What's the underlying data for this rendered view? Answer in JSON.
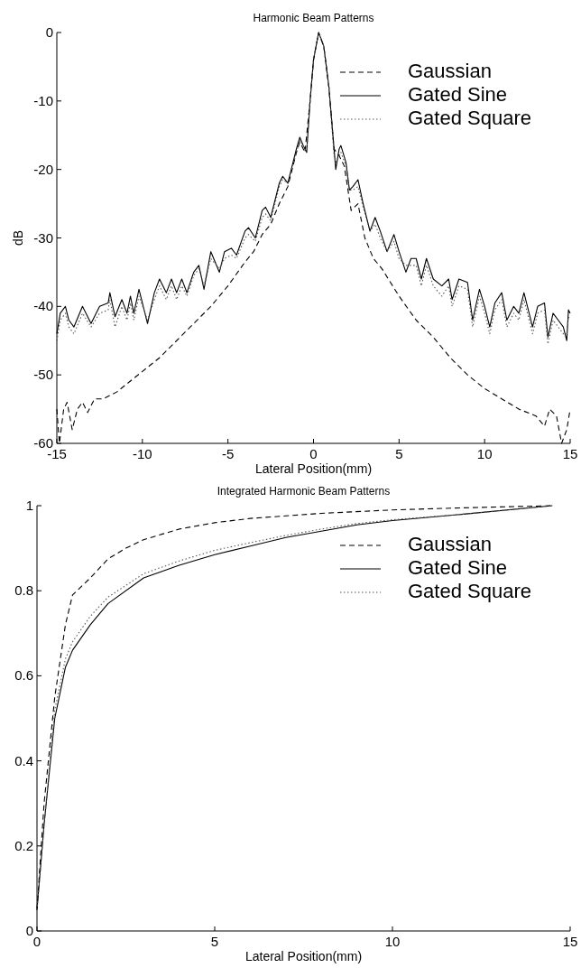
{
  "chart_data": [
    {
      "type": "line",
      "title": "Harmonic Beam Patterns",
      "xlabel": "Lateral Position(mm)",
      "ylabel": "dB",
      "xlim": [
        -15,
        15
      ],
      "ylim": [
        -60,
        0
      ],
      "xticks": [
        -15,
        -10,
        -5,
        0,
        5,
        10,
        15
      ],
      "yticks": [
        -60,
        -50,
        -40,
        -30,
        -20,
        -10,
        0
      ],
      "legend": "top right",
      "series": [
        {
          "name": "Gaussian",
          "color": "#000000",
          "line_style": "dashed",
          "x": [
            -15,
            -14.85,
            -14.6,
            -14.4,
            -14.1,
            -13.8,
            -13.5,
            -13.2,
            -12.8,
            -12.3,
            -11.5,
            -11,
            -10,
            -9,
            -8,
            -7,
            -6,
            -5,
            -4,
            -3.5,
            -3,
            -2.5,
            -2,
            -1.5,
            -1,
            -0.8,
            -0.5,
            -0.2,
            0,
            0.3,
            0.6,
            0.9,
            1.2,
            1.5,
            1.8,
            2.2,
            2.6,
            3,
            3.5,
            4,
            5,
            6,
            7,
            8,
            9,
            10,
            11,
            12,
            13,
            13.5,
            13.8,
            14.2,
            14.5,
            14.8,
            15
          ],
          "values": [
            -55,
            -60,
            -55,
            -54,
            -58,
            -55,
            -54,
            -55.5,
            -53.5,
            -53.5,
            -52.5,
            -51.5,
            -49.5,
            -47.5,
            -45,
            -42.5,
            -40,
            -37,
            -33.5,
            -32,
            -29.5,
            -28,
            -25,
            -22.5,
            -17.5,
            -16,
            -17.5,
            -10,
            -4,
            0,
            -2,
            -8,
            -17,
            -18,
            -19.5,
            -26,
            -25,
            -30,
            -33,
            -34.5,
            -38.5,
            -42,
            -44.5,
            -47.5,
            -50,
            -52,
            -53.5,
            -55,
            -56,
            -57.5,
            -55,
            -56,
            -60,
            -58,
            -55
          ]
        },
        {
          "name": "Gated Sine",
          "color": "#000000",
          "line_style": "solid",
          "x": [
            -15,
            -14.8,
            -14.5,
            -14.3,
            -14,
            -13.5,
            -13,
            -12.5,
            -12,
            -11.9,
            -11.6,
            -11.2,
            -10.9,
            -10.7,
            -10.5,
            -10.2,
            -9.7,
            -9.3,
            -9,
            -8.6,
            -8.3,
            -8,
            -7.7,
            -7.4,
            -7,
            -6.7,
            -6.4,
            -6,
            -5.5,
            -5.2,
            -4.8,
            -4.5,
            -4,
            -3.8,
            -3.4,
            -3,
            -2.8,
            -2.5,
            -2,
            -1.8,
            -1.5,
            -1,
            -0.8,
            -0.6,
            -0.4,
            -0.2,
            0,
            0.3,
            0.6,
            0.9,
            1.2,
            1.3,
            1.5,
            1.6,
            1.9,
            2.1,
            2.3,
            2.6,
            2.9,
            3.3,
            3.6,
            3.9,
            4.3,
            4.7,
            5,
            5.4,
            5.7,
            6,
            6.3,
            6.6,
            7,
            7.5,
            7.9,
            8.1,
            8.5,
            9,
            9.3,
            9.7,
            10,
            10.3,
            10.6,
            11,
            11.3,
            11.7,
            12,
            12.3,
            12.6,
            12.8,
            13.1,
            13.5,
            13.7,
            14,
            14.3,
            14.6,
            14.8,
            14.9,
            15
          ],
          "values": [
            -44,
            -41,
            -40,
            -42,
            -43,
            -40,
            -42.5,
            -40,
            -39.5,
            -38,
            -41.5,
            -39,
            -41,
            -38.5,
            -41,
            -37.5,
            -42.5,
            -38,
            -36,
            -38,
            -36,
            -38,
            -36,
            -38,
            -35,
            -34,
            -37.5,
            -32,
            -35,
            -32,
            -31.5,
            -32.5,
            -29,
            -28.5,
            -30,
            -26,
            -25.5,
            -27,
            -22,
            -21,
            -22,
            -17,
            -15.3,
            -16.5,
            -17.5,
            -10,
            -4,
            0,
            -2,
            -8,
            -17,
            -20,
            -17,
            -16.5,
            -19,
            -23,
            -22.5,
            -21.5,
            -25,
            -29,
            -27,
            -29,
            -32,
            -29.5,
            -32,
            -35,
            -33,
            -33,
            -36,
            -33,
            -36,
            -37,
            -36,
            -39,
            -36,
            -36.5,
            -42,
            -37.5,
            -40,
            -43,
            -39.5,
            -38,
            -42,
            -40,
            -41,
            -38,
            -41,
            -43,
            -40,
            -39.5,
            -44.5,
            -41,
            -42,
            -43,
            -45,
            -40.5,
            -41
          ]
        },
        {
          "name": "Gated Square",
          "color": "#555555",
          "line_style": "dotted",
          "x": [
            -15,
            -14.8,
            -14.5,
            -14.3,
            -14,
            -13.5,
            -13,
            -12.5,
            -12,
            -11.9,
            -11.6,
            -11.2,
            -10.9,
            -10.7,
            -10.5,
            -10.2,
            -9.7,
            -9.3,
            -9,
            -8.6,
            -8.3,
            -8,
            -7.7,
            -7.4,
            -7,
            -6.7,
            -6.4,
            -6,
            -5.5,
            -5.2,
            -4.8,
            -4.5,
            -4,
            -3.8,
            -3.4,
            -3,
            -2.8,
            -2.5,
            -2,
            -1.8,
            -1.5,
            -1,
            -0.8,
            -0.6,
            -0.4,
            -0.2,
            0,
            0.3,
            0.6,
            0.9,
            1.2,
            1.3,
            1.5,
            1.6,
            1.9,
            2.1,
            2.3,
            2.6,
            2.9,
            3.3,
            3.6,
            3.9,
            4.3,
            4.7,
            5,
            5.4,
            5.7,
            6,
            6.3,
            6.6,
            7,
            7.5,
            7.9,
            8.1,
            8.5,
            9,
            9.3,
            9.7,
            10,
            10.3,
            10.6,
            11,
            11.3,
            11.7,
            12,
            12.3,
            12.6,
            12.8,
            13.1,
            13.5,
            13.7,
            14,
            14.3,
            14.6,
            14.8,
            14.9,
            15
          ],
          "values": [
            -45,
            -42,
            -41,
            -43,
            -44,
            -41,
            -43,
            -41,
            -40.5,
            -39,
            -43,
            -40,
            -42,
            -39.5,
            -42,
            -38.5,
            -42,
            -39,
            -37,
            -39,
            -37,
            -39,
            -37,
            -38.5,
            -35.5,
            -34.5,
            -37,
            -33,
            -34.5,
            -33,
            -32.5,
            -33,
            -30,
            -29.5,
            -30.5,
            -27,
            -26.5,
            -27.5,
            -22.5,
            -21.5,
            -22,
            -17.5,
            -15.8,
            -16.5,
            -17.5,
            -10,
            -4,
            0,
            -2,
            -8,
            -18,
            -19,
            -18,
            -17.5,
            -19.5,
            -23,
            -23,
            -22.5,
            -25.5,
            -29,
            -28,
            -30,
            -32,
            -30.5,
            -33,
            -34,
            -34,
            -34,
            -37,
            -34,
            -37,
            -38.5,
            -37,
            -40,
            -37,
            -37.5,
            -43,
            -38.5,
            -41,
            -44,
            -40.5,
            -39,
            -43,
            -41,
            -42,
            -39,
            -42,
            -44,
            -41,
            -40.5,
            -45.5,
            -42,
            -43,
            -44,
            -44,
            -41.5,
            -42
          ]
        }
      ]
    },
    {
      "type": "line",
      "title": "Integrated Harmonic Beam Patterns",
      "xlabel": "Lateral Position(mm)",
      "xlim": [
        0,
        15
      ],
      "ylim": [
        0,
        1
      ],
      "xticks": [
        0,
        5,
        10,
        15
      ],
      "yticks": [
        0,
        0.2,
        0.4,
        0.6,
        0.8,
        1
      ],
      "legend": "top right",
      "series": [
        {
          "name": "Gaussian",
          "color": "#000000",
          "line_style": "dashed",
          "x": [
            0,
            0.2,
            0.5,
            0.8,
            1,
            1.5,
            2,
            2.5,
            3,
            4,
            5,
            6,
            8,
            10,
            12,
            14.5
          ],
          "values": [
            0.05,
            0.3,
            0.55,
            0.72,
            0.79,
            0.83,
            0.875,
            0.9,
            0.92,
            0.945,
            0.96,
            0.97,
            0.982,
            0.99,
            0.995,
            1
          ]
        },
        {
          "name": "Gated Sine",
          "color": "#000000",
          "line_style": "solid",
          "x": [
            0,
            0.2,
            0.5,
            0.8,
            1,
            1.5,
            2,
            3,
            4,
            5,
            6,
            7,
            8,
            9,
            10,
            12,
            14.5
          ],
          "values": [
            0.05,
            0.25,
            0.5,
            0.62,
            0.66,
            0.72,
            0.77,
            0.83,
            0.86,
            0.885,
            0.905,
            0.925,
            0.94,
            0.955,
            0.965,
            0.98,
            1
          ]
        },
        {
          "name": "Gated Square",
          "color": "#555555",
          "line_style": "dotted",
          "x": [
            0,
            0.2,
            0.5,
            0.8,
            1,
            1.5,
            2,
            3,
            4,
            5,
            6,
            7,
            8,
            9,
            10,
            12,
            14.5
          ],
          "values": [
            0.05,
            0.25,
            0.52,
            0.64,
            0.68,
            0.74,
            0.785,
            0.84,
            0.87,
            0.895,
            0.913,
            0.93,
            0.945,
            0.958,
            0.967,
            0.98,
            1
          ]
        }
      ]
    }
  ]
}
